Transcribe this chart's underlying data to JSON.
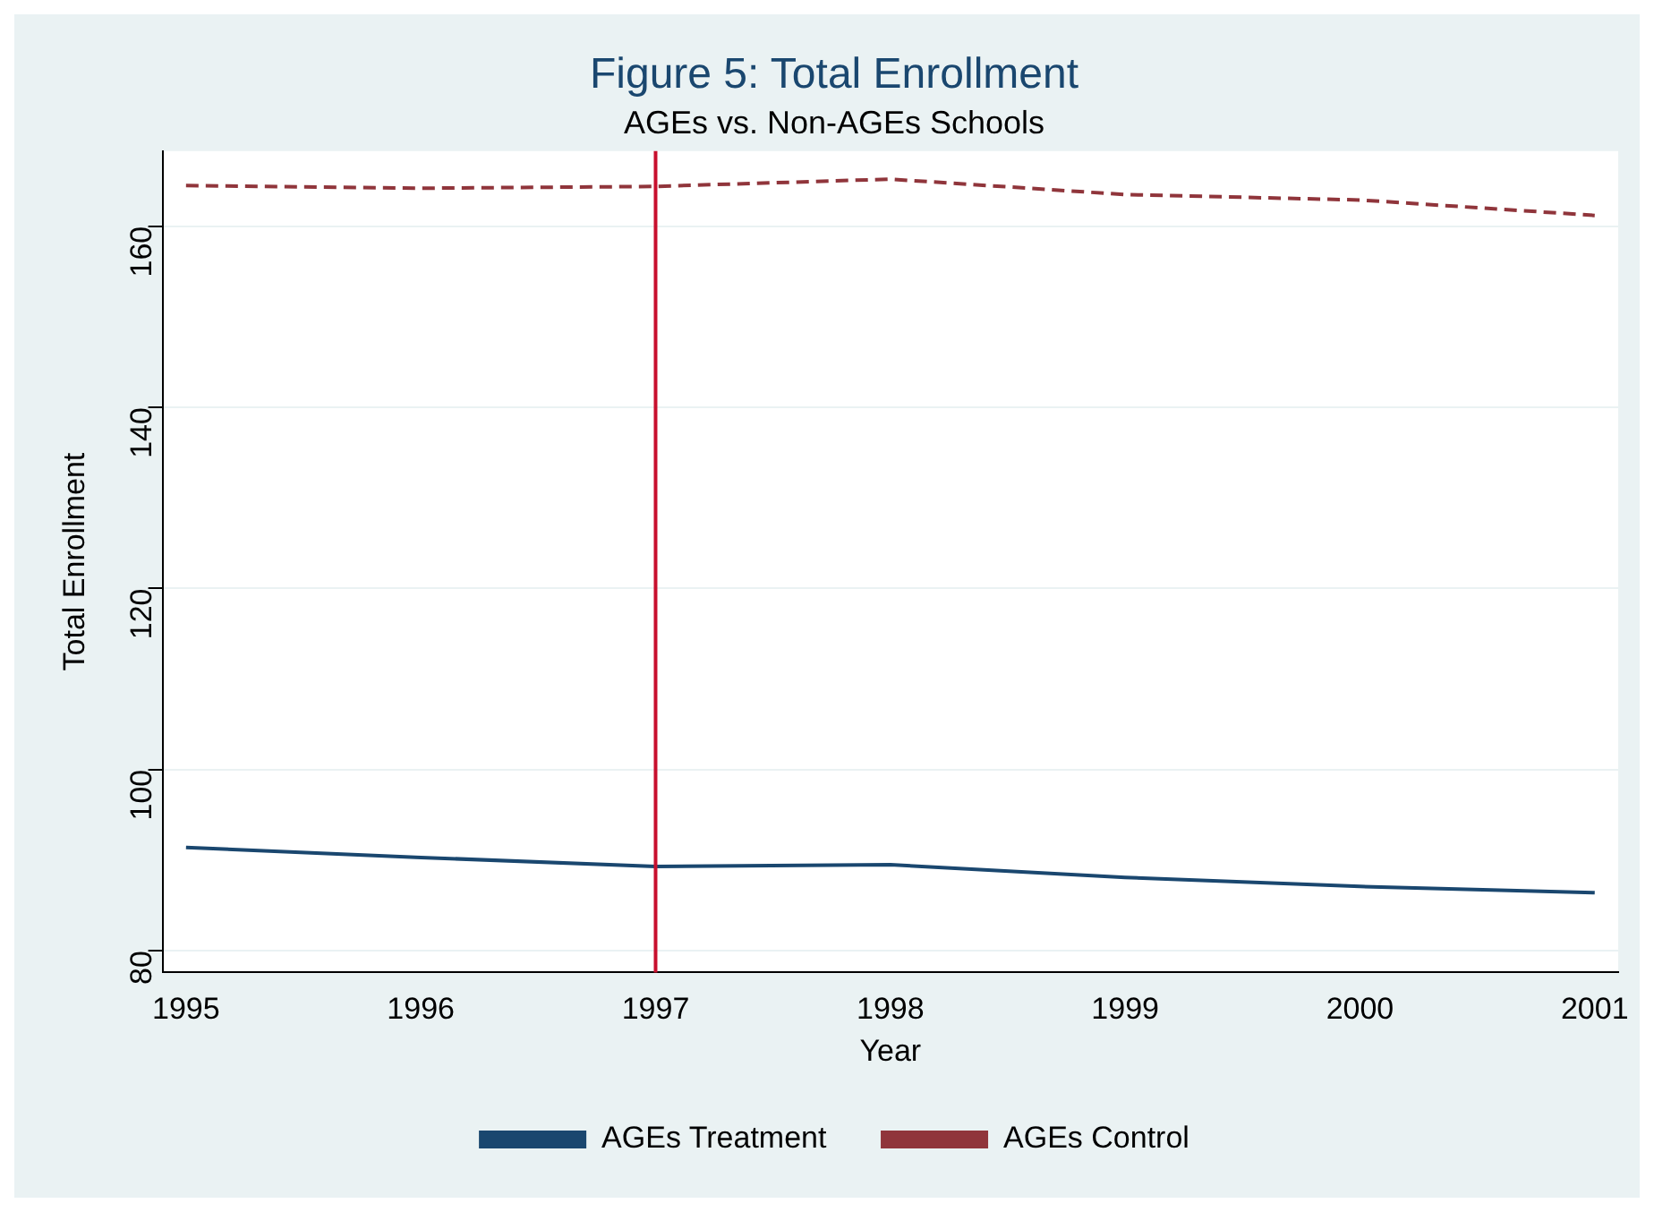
{
  "chart_data": {
    "type": "line",
    "title": "Figure 5: Total Enrollment",
    "subtitle": "AGEs vs. Non-AGEs Schools",
    "xlabel": "Year",
    "ylabel": "Total Enrollment",
    "x": [
      1995,
      1996,
      1997,
      1998,
      1999,
      2000,
      2001
    ],
    "series": [
      {
        "name": "AGEs Treatment",
        "color": "#1a476f",
        "values": [
          91.4,
          90.3,
          89.3,
          89.5,
          88.1,
          87.1,
          86.4
        ],
        "line_style": "solid"
      },
      {
        "name": "AGEs Control",
        "color": "#90353b",
        "values": [
          164.5,
          164.2,
          164.4,
          165.2,
          163.5,
          162.9,
          161.2
        ],
        "line_style": "dashed"
      }
    ],
    "xlim": [
      1994.9,
      2001.1
    ],
    "xticks": [
      1995,
      1996,
      1997,
      1998,
      1999,
      2000,
      2001
    ],
    "ylim": [
      77.6,
      168.3
    ],
    "yticks": [
      80,
      100,
      120,
      140,
      160
    ],
    "ref_lines": [
      {
        "axis": "x",
        "value": 1997,
        "color": "#c8102e"
      }
    ],
    "grid": "y",
    "legend": "bottom",
    "marker": "none"
  }
}
